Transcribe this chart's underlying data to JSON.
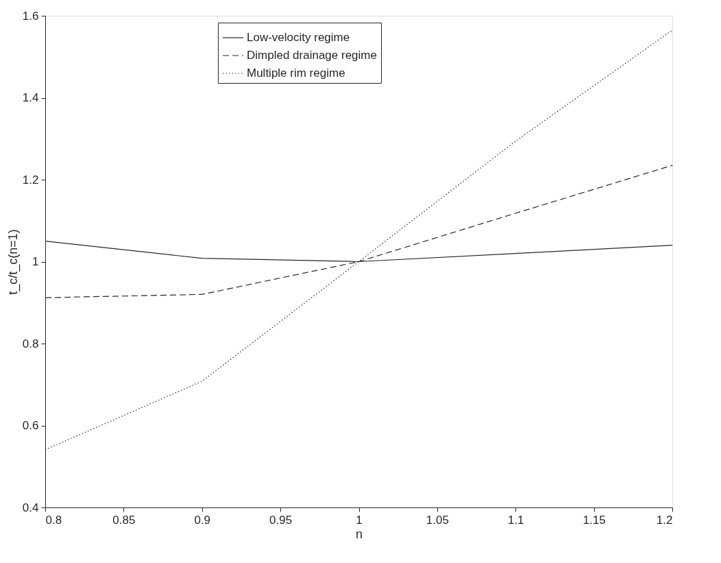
{
  "chart_data": {
    "type": "line",
    "xlabel": "n",
    "ylabel": "t_c/t_c(n=1)",
    "x": [
      0.8,
      0.9,
      1.0,
      1.1,
      1.2
    ],
    "series": [
      {
        "name": "Low-velocity regime",
        "color": "#262626",
        "line_style": "solid",
        "values": [
          1.05,
          1.008,
          1.0,
          1.02,
          1.04
        ]
      },
      {
        "name": "Dimpled drainage regime",
        "color": "#262626",
        "line_style": "dashed",
        "values": [
          0.912,
          0.92,
          1.0,
          1.118,
          1.235
        ]
      },
      {
        "name": "Multiple rim regime",
        "color": "#262626",
        "line_style": "dotted",
        "values": [
          0.541,
          0.708,
          1.0,
          1.294,
          1.565
        ]
      }
    ],
    "xlim": [
      0.8,
      1.2
    ],
    "xticks": [
      0.8,
      0.85,
      0.9,
      0.95,
      1,
      1.05,
      1.1,
      1.15,
      1.2
    ],
    "ylim": [
      0.4,
      1.6
    ],
    "yticks": [
      0.4,
      0.6,
      0.8,
      1,
      1.2,
      1.4,
      1.6
    ],
    "grid": false,
    "legend": "top",
    "marker": "none"
  }
}
